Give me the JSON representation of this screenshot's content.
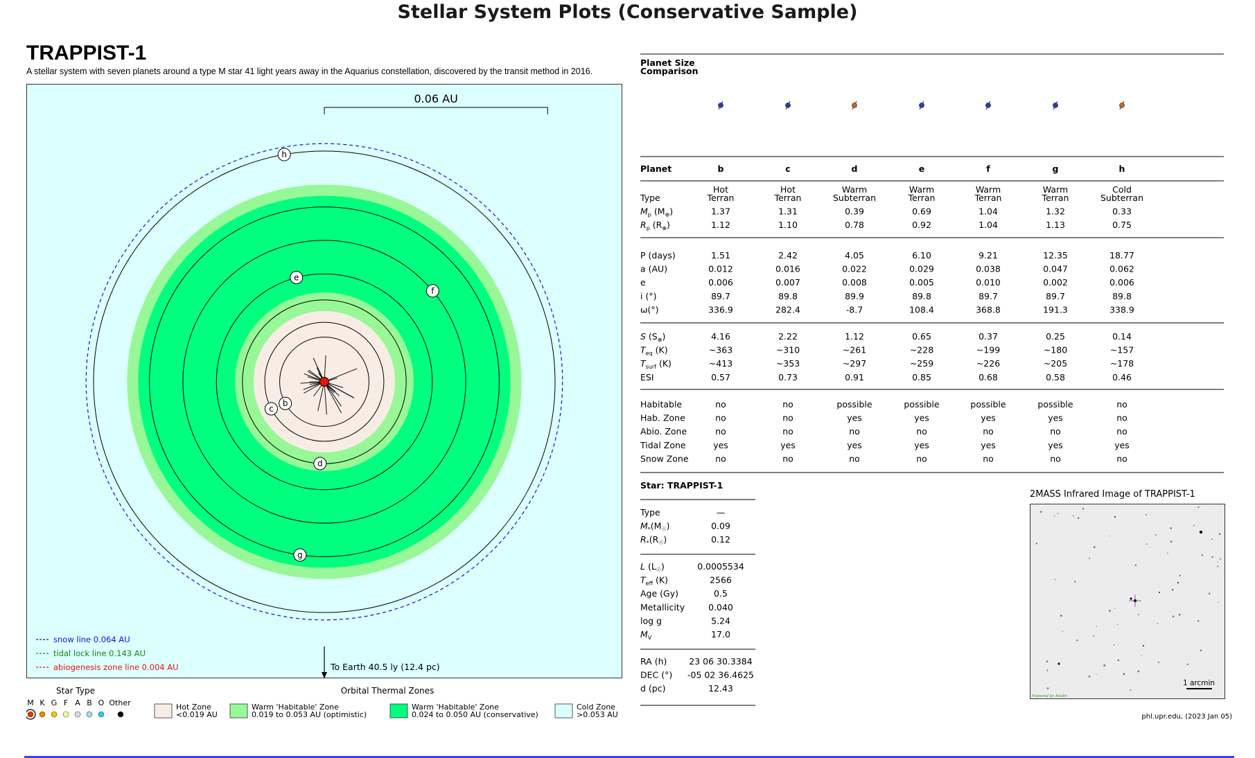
{
  "title": "Stellar System Plots (Conservative Sample)",
  "system": {
    "name": "TRAPPIST-1",
    "description": "A stellar system with seven planets around a type M star 41 light years away in the Aquarius constellation, discovered by the transit method in 2016."
  },
  "orbit_plot": {
    "scale_label": "0.06 AU",
    "earth_label": "To Earth 40.5 ly (12.4 pc)",
    "planets": [
      {
        "label": "b",
        "a_au": 0.012
      },
      {
        "label": "c",
        "a_au": 0.016
      },
      {
        "label": "d",
        "a_au": 0.022
      },
      {
        "label": "e",
        "a_au": 0.029
      },
      {
        "label": "f",
        "a_au": 0.038
      },
      {
        "label": "g",
        "a_au": 0.047
      },
      {
        "label": "h",
        "a_au": 0.062
      }
    ],
    "zones_au": {
      "hot_edge": 0.019,
      "cons_inner": 0.024,
      "cons_outer": 0.05,
      "opt_outer": 0.053,
      "snow": 0.064
    },
    "lines": [
      {
        "label": "snow line 0.064 AU",
        "color": "#1010ee"
      },
      {
        "label": "tidal lock line 0.143 AU",
        "color": "#118811"
      },
      {
        "label": "abiogenesis zone line 0.004 AU",
        "color": "#ee1111"
      }
    ],
    "colors": {
      "hot": "#f8ede4",
      "optimistic": "#98f898",
      "conservative": "#00ff7f",
      "cold": "#dcffff",
      "star": "#ee1111"
    }
  },
  "star_type_legend": {
    "title": "Star Type",
    "types": [
      "M",
      "K",
      "G",
      "F",
      "A",
      "B",
      "O",
      "Other"
    ]
  },
  "zones_legend": {
    "title": "Orbital Thermal Zones",
    "items": [
      {
        "name": "Hot Zone",
        "range": "<0.019 AU",
        "color": "#f8ede4"
      },
      {
        "name": "Warm 'Habitable' Zone",
        "range": "0.019 to 0.053 AU (optimistic)",
        "color": "#98f898"
      },
      {
        "name": "Warm 'Habitable' Zone",
        "range": "0.024 to 0.050 AU (conservative)",
        "color": "#00ff7f"
      },
      {
        "name": "Cold Zone",
        "range": ">0.053 AU",
        "color": "#dcffff"
      }
    ]
  },
  "planet_table": {
    "size_title_1": "Planet Size",
    "size_title_2": "Comparison",
    "header": "Planet",
    "planets": [
      "b",
      "c",
      "d",
      "e",
      "f",
      "g",
      "h"
    ],
    "groups": [
      [
        {
          "label": "Type",
          "vals": [
            [
              "Hot",
              "Terran"
            ],
            [
              "Hot",
              "Terran"
            ],
            [
              "Warm",
              "Subterran"
            ],
            [
              "Warm",
              "Terran"
            ],
            [
              "Warm",
              "Terran"
            ],
            [
              "Warm",
              "Terran"
            ],
            [
              "Cold",
              "Subterran"
            ]
          ]
        },
        {
          "label": "Mp (M⊕)",
          "vals": [
            "1.37",
            "1.31",
            "0.39",
            "0.69",
            "1.04",
            "1.32",
            "0.33"
          ]
        },
        {
          "label": "Rp (R⊕)",
          "vals": [
            "1.12",
            "1.10",
            "0.78",
            "0.92",
            "1.04",
            "1.13",
            "0.75"
          ]
        }
      ],
      [
        {
          "label": "P (days)",
          "vals": [
            "1.51",
            "2.42",
            "4.05",
            "6.10",
            "9.21",
            "12.35",
            "18.77"
          ]
        },
        {
          "label": "a (AU)",
          "vals": [
            "0.012",
            "0.016",
            "0.022",
            "0.029",
            "0.038",
            "0.047",
            "0.062"
          ]
        },
        {
          "label": "e",
          "vals": [
            "0.006",
            "0.007",
            "0.008",
            "0.005",
            "0.010",
            "0.002",
            "0.006"
          ]
        },
        {
          "label": "i (°)",
          "vals": [
            "89.7",
            "89.8",
            "89.9",
            "89.8",
            "89.7",
            "89.7",
            "89.8"
          ]
        },
        {
          "label": "ω(°)",
          "vals": [
            "336.9",
            "282.4",
            "-8.7",
            "108.4",
            "368.8",
            "191.3",
            "338.9"
          ]
        }
      ],
      [
        {
          "label": "S (S⊕)",
          "vals": [
            "4.16",
            "2.22",
            "1.12",
            "0.65",
            "0.37",
            "0.25",
            "0.14"
          ]
        },
        {
          "label": "Teq (K)",
          "vals": [
            "~363",
            "~310",
            "~261",
            "~228",
            "~199",
            "~180",
            "~157"
          ]
        },
        {
          "label": "Tsurf (K)",
          "vals": [
            "~413",
            "~353",
            "~297",
            "~259",
            "~226",
            "~205",
            "~178"
          ]
        },
        {
          "label": "ESI",
          "vals": [
            "0.57",
            "0.73",
            "0.91",
            "0.85",
            "0.68",
            "0.58",
            "0.46"
          ]
        }
      ],
      [
        {
          "label": "Habitable",
          "vals": [
            "no",
            "no",
            "possible",
            "possible",
            "possible",
            "possible",
            "no"
          ]
        },
        {
          "label": "Hab. Zone",
          "vals": [
            "no",
            "no",
            "yes",
            "yes",
            "yes",
            "yes",
            "no"
          ]
        },
        {
          "label": "Abio. Zone",
          "vals": [
            "no",
            "no",
            "no",
            "no",
            "no",
            "no",
            "no"
          ]
        },
        {
          "label": "Tidal Zone",
          "vals": [
            "yes",
            "yes",
            "yes",
            "yes",
            "yes",
            "yes",
            "yes"
          ]
        },
        {
          "label": "Snow Zone",
          "vals": [
            "no",
            "no",
            "no",
            "no",
            "no",
            "no",
            "no"
          ]
        }
      ]
    ],
    "planet_colors": [
      "#2a3cb0",
      "#2a3cb0",
      "#b56a2a",
      "#2a3cb0",
      "#2a3cb0",
      "#2a3cb0",
      "#b56a2a"
    ]
  },
  "star_table": {
    "title": "Star: TRAPPIST-1",
    "groups": [
      [
        {
          "label": "Type",
          "val": "—"
        },
        {
          "label": "M*(M☉)",
          "val": "0.09"
        },
        {
          "label": "R*(R☉)",
          "val": "0.12"
        }
      ],
      [
        {
          "label": "L (L☉)",
          "val": "0.0005534"
        },
        {
          "label": "Teff (K)",
          "val": "2566"
        },
        {
          "label": "Age (Gy)",
          "val": "0.5"
        },
        {
          "label": "Metallicity",
          "val": "0.040"
        },
        {
          "label": "log g",
          "val": "5.24"
        },
        {
          "label": "MV",
          "val": "17.0"
        }
      ],
      [
        {
          "label": "RA (h)",
          "val": "23 06 30.3384"
        },
        {
          "label": "DEC (°)",
          "val": "-05 02 36.4625"
        },
        {
          "label": "d (pc)",
          "val": "12.43"
        }
      ]
    ]
  },
  "infrared": {
    "title": "2MASS Infrared Image of TRAPPIST-1",
    "scale": "1 arcmin",
    "powered": "Powered by Aladin"
  },
  "credit": "phl.upr.edu, (2023 Jan 05)"
}
